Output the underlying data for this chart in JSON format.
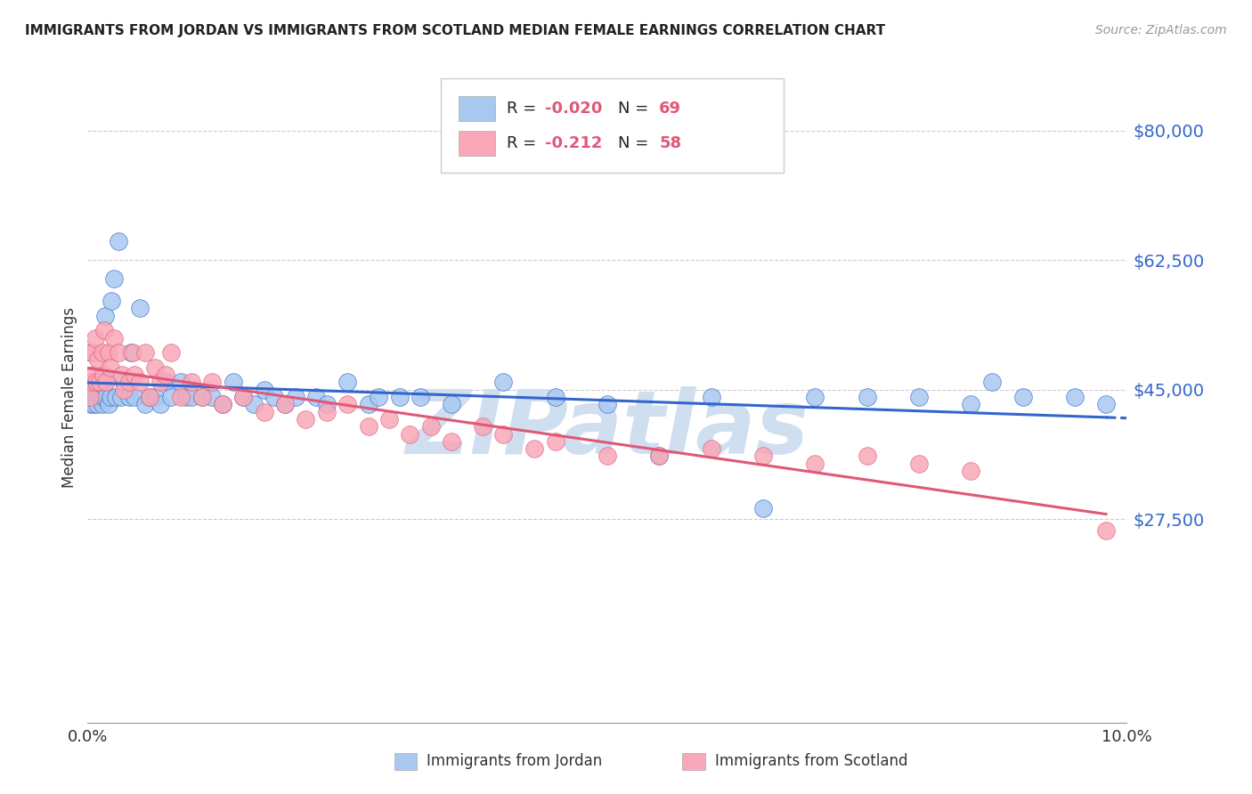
{
  "title": "IMMIGRANTS FROM JORDAN VS IMMIGRANTS FROM SCOTLAND MEDIAN FEMALE EARNINGS CORRELATION CHART",
  "source": "Source: ZipAtlas.com",
  "ylabel": "Median Female Earnings",
  "legend_label1": "Immigrants from Jordan",
  "legend_label2": "Immigrants from Scotland",
  "R1": -0.02,
  "N1": 69,
  "R2": -0.212,
  "N2": 58,
  "color1": "#a8c8f0",
  "color2": "#f8a8b8",
  "line_color1": "#3366cc",
  "line_color2": "#e05878",
  "axis_color": "#3366cc",
  "xlim": [
    0.0,
    0.1
  ],
  "ylim": [
    0,
    88000
  ],
  "yticks": [
    0,
    27500,
    45000,
    62500,
    80000
  ],
  "ytick_labels": [
    "",
    "$27,500",
    "$45,000",
    "$62,500",
    "$80,000"
  ],
  "xticks": [
    0.0,
    0.02,
    0.04,
    0.06,
    0.08,
    0.1
  ],
  "xtick_labels": [
    "0.0%",
    "",
    "",
    "",
    "",
    "10.0%"
  ],
  "jordan_x": [
    0.0002,
    0.0003,
    0.0004,
    0.0005,
    0.0006,
    0.0007,
    0.0008,
    0.0009,
    0.001,
    0.0012,
    0.0013,
    0.0014,
    0.0015,
    0.0016,
    0.0017,
    0.0018,
    0.002,
    0.0022,
    0.0023,
    0.0025,
    0.0027,
    0.003,
    0.0032,
    0.0035,
    0.004,
    0.0042,
    0.0045,
    0.005,
    0.0055,
    0.006,
    0.0065,
    0.007,
    0.0075,
    0.008,
    0.009,
    0.0095,
    0.01,
    0.011,
    0.012,
    0.013,
    0.014,
    0.015,
    0.016,
    0.017,
    0.018,
    0.019,
    0.02,
    0.022,
    0.023,
    0.025,
    0.027,
    0.028,
    0.03,
    0.032,
    0.035,
    0.04,
    0.045,
    0.05,
    0.055,
    0.06,
    0.065,
    0.07,
    0.075,
    0.08,
    0.085,
    0.087,
    0.09,
    0.095,
    0.098
  ],
  "jordan_y": [
    44000,
    43000,
    45000,
    44000,
    43000,
    45000,
    44000,
    43000,
    45000,
    44000,
    46000,
    43000,
    44000,
    46000,
    55000,
    44000,
    43000,
    44000,
    57000,
    60000,
    44000,
    65000,
    44000,
    46000,
    44000,
    50000,
    44000,
    56000,
    43000,
    44000,
    44000,
    43000,
    46000,
    44000,
    46000,
    44000,
    44000,
    44000,
    44000,
    43000,
    46000,
    44000,
    43000,
    45000,
    44000,
    43000,
    44000,
    44000,
    43000,
    46000,
    43000,
    44000,
    44000,
    44000,
    43000,
    46000,
    44000,
    43000,
    36000,
    44000,
    29000,
    44000,
    44000,
    44000,
    43000,
    46000,
    44000,
    44000,
    43000
  ],
  "scotland_x": [
    0.0002,
    0.0003,
    0.0004,
    0.0005,
    0.0006,
    0.0007,
    0.0008,
    0.001,
    0.0012,
    0.0014,
    0.0015,
    0.0016,
    0.0018,
    0.002,
    0.0022,
    0.0025,
    0.003,
    0.0033,
    0.0035,
    0.004,
    0.0043,
    0.0045,
    0.005,
    0.0055,
    0.006,
    0.0065,
    0.007,
    0.0075,
    0.008,
    0.009,
    0.01,
    0.011,
    0.012,
    0.013,
    0.015,
    0.017,
    0.019,
    0.021,
    0.023,
    0.025,
    0.027,
    0.029,
    0.031,
    0.033,
    0.035,
    0.038,
    0.04,
    0.043,
    0.045,
    0.05,
    0.055,
    0.06,
    0.065,
    0.07,
    0.075,
    0.08,
    0.085,
    0.098
  ],
  "scotland_y": [
    44000,
    50000,
    46000,
    50000,
    47000,
    52000,
    46000,
    49000,
    46000,
    50000,
    47000,
    53000,
    46000,
    50000,
    48000,
    52000,
    50000,
    47000,
    45000,
    46000,
    50000,
    47000,
    46000,
    50000,
    44000,
    48000,
    46000,
    47000,
    50000,
    44000,
    46000,
    44000,
    46000,
    43000,
    44000,
    42000,
    43000,
    41000,
    42000,
    43000,
    40000,
    41000,
    39000,
    40000,
    38000,
    40000,
    39000,
    37000,
    38000,
    36000,
    36000,
    37000,
    36000,
    35000,
    36000,
    35000,
    34000,
    26000
  ],
  "watermark": "ZIPatlas",
  "wm_color": "#d0dff0"
}
